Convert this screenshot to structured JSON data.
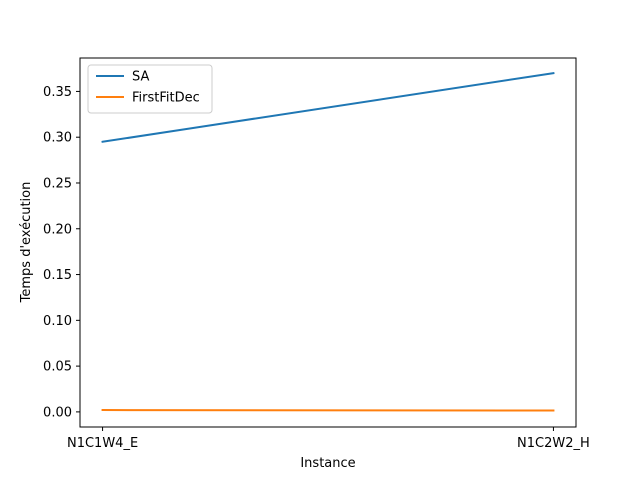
{
  "chart_data": {
    "type": "line",
    "title": "",
    "xlabel": "Instance",
    "ylabel": "Temps d'exécution",
    "categories": [
      "N1C1W4_E",
      "N1C2W2_H"
    ],
    "ylim": [
      -0.0165,
      0.3865
    ],
    "yticks": [
      0.0,
      0.05,
      0.1,
      0.15,
      0.2,
      0.25,
      0.3,
      0.35
    ],
    "ytick_labels": [
      "0.00",
      "0.05",
      "0.10",
      "0.15",
      "0.20",
      "0.25",
      "0.30",
      "0.35"
    ],
    "grid": false,
    "legend_position": "upper-left",
    "series": [
      {
        "name": "SA",
        "color": "#1f77b4",
        "values": [
          0.295,
          0.37
        ]
      },
      {
        "name": "FirstFitDec",
        "color": "#ff7f0e",
        "values": [
          0.002,
          0.0015
        ]
      }
    ]
  }
}
